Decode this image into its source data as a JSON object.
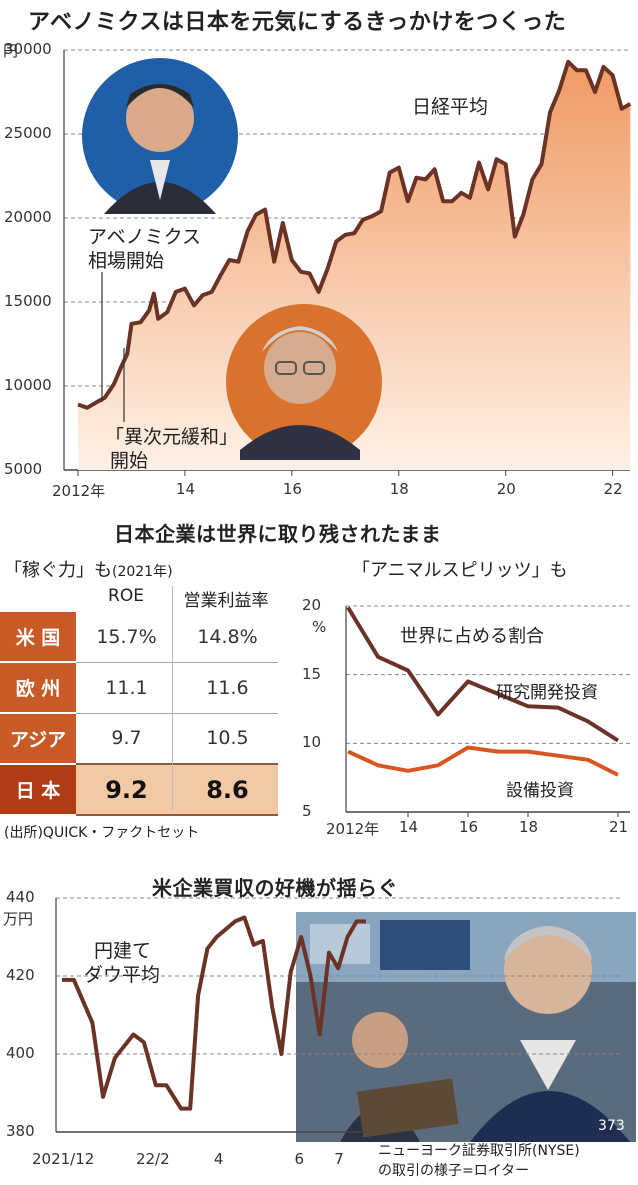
{
  "colors": {
    "line_dark": "#6b3326",
    "line_orange": "#d8561f",
    "area_top": "#ef9a63",
    "area_bottom": "#fff1e6",
    "grid": "#888888",
    "table_header": "#c75a26",
    "table_highlight": "#f3c9a5"
  },
  "icons": {
    "photo1": "photo-abe-icon",
    "photo2": "photo-kuroda-icon",
    "photo3": "photo-nyse-trader-icon"
  },
  "chart1": {
    "title": "アベノミクスは日本を元気にするきっかけをつくった",
    "unit": "円",
    "series_label": "日経平均",
    "annotation1_line1": "アベノミクス",
    "annotation1_line2": "相場開始",
    "annotation2_line1": "「異次元緩和」",
    "annotation2_line2": "開始",
    "yticks": [
      "30000",
      "25000",
      "20000",
      "15000",
      "10000",
      "5000"
    ],
    "xticks": [
      "2012年",
      "14",
      "16",
      "18",
      "20",
      "22"
    ]
  },
  "section2": {
    "title": "日本企業は世界に取り残されたまま"
  },
  "table": {
    "title": "「稼ぐ力」も",
    "title_suffix": "(2021年)",
    "col1": "ROE",
    "col2": "営業利益率",
    "rows": [
      {
        "name": "米 国",
        "roe": "15.7%",
        "margin": "14.8%"
      },
      {
        "name": "欧 州",
        "roe": "11.1",
        "margin": "11.6"
      },
      {
        "name": "アジア",
        "roe": "9.7",
        "margin": "10.5"
      },
      {
        "name": "日 本",
        "roe": "9.2",
        "margin": "8.6"
      }
    ],
    "source": "(出所)QUICK・ファクトセット"
  },
  "chart2": {
    "title": "「アニマルスピリッツ」も",
    "subtitle": "世界に占める割合",
    "unit": "%",
    "series1_label": "研究開発投資",
    "series2_label": "設備投資",
    "yticks": [
      "20",
      "15",
      "10",
      "5"
    ],
    "xticks": [
      "2012年",
      "14",
      "16",
      "18",
      "21"
    ]
  },
  "chart3": {
    "title": "米企業買収の好機が揺らぐ",
    "unit": "万円",
    "series_label_line1": "円建て",
    "series_label_line2": "ダウ平均",
    "yticks": [
      "440",
      "420",
      "400",
      "380"
    ],
    "xticks": [
      "2021/12",
      "22/2",
      "4",
      "6",
      "7"
    ],
    "caption_line1": "ニューヨーク証券取引所(NYSE)",
    "caption_line2": "の取引の様子=ロイター",
    "photo_text": "373"
  },
  "chart_data": [
    {
      "type": "area",
      "title": "アベノミクスは日本を元気にするきっかけをつくった",
      "ylabel": "円",
      "ylim": [
        5000,
        30000
      ],
      "xlim": [
        2012.0,
        2022.4
      ],
      "grid": true,
      "series": [
        {
          "name": "日経平均",
          "x": [
            2012.0,
            2012.17,
            2012.33,
            2012.5,
            2012.67,
            2012.83,
            2012.92,
            2013.0,
            2013.17,
            2013.33,
            2013.42,
            2013.5,
            2013.67,
            2013.83,
            2014.0,
            2014.17,
            2014.33,
            2014.5,
            2014.67,
            2014.83,
            2015.0,
            2015.17,
            2015.33,
            2015.5,
            2015.67,
            2015.83,
            2016.0,
            2016.17,
            2016.33,
            2016.5,
            2016.67,
            2016.83,
            2017.0,
            2017.17,
            2017.33,
            2017.5,
            2017.67,
            2017.83,
            2018.0,
            2018.17,
            2018.33,
            2018.5,
            2018.67,
            2018.83,
            2019.0,
            2019.17,
            2019.33,
            2019.5,
            2019.67,
            2019.83,
            2020.0,
            2020.17,
            2020.33,
            2020.5,
            2020.67,
            2020.83,
            2021.0,
            2021.17,
            2021.33,
            2021.5,
            2021.67,
            2021.83,
            2022.0,
            2022.17,
            2022.33
          ],
          "y": [
            8900,
            8700,
            9000,
            9300,
            10100,
            11300,
            11900,
            13700,
            13800,
            14500,
            15500,
            14000,
            14400,
            15600,
            15800,
            14800,
            15400,
            15600,
            16600,
            17500,
            17400,
            19200,
            20200,
            20500,
            17400,
            19700,
            17500,
            16800,
            16700,
            15600,
            17000,
            18600,
            19000,
            19100,
            19900,
            20100,
            20400,
            22700,
            23000,
            21000,
            22400,
            22300,
            22900,
            21000,
            21000,
            21500,
            21200,
            23300,
            21700,
            23500,
            23200,
            18900,
            20200,
            22300,
            23200,
            26300,
            27600,
            29300,
            28800,
            28800,
            27500,
            29000,
            28500,
            26500,
            26800
          ]
        }
      ]
    },
    {
      "type": "table",
      "title": "「稼ぐ力」も",
      "columns": [
        "",
        "ROE",
        "営業利益率"
      ],
      "rows": [
        [
          "米国",
          "15.7%",
          "14.8%"
        ],
        [
          "欧州",
          "11.1",
          "11.6"
        ],
        [
          "アジア",
          "9.7",
          "10.5"
        ],
        [
          "日本",
          "9.2",
          "8.6"
        ]
      ]
    },
    {
      "type": "line",
      "title": "「アニマルスピリッツ」も",
      "ylabel": "%",
      "ylim": [
        5,
        20
      ],
      "x": [
        2012,
        2013,
        2014,
        2015,
        2016,
        2017,
        2018,
        2019,
        2020,
        2021
      ],
      "series": [
        {
          "name": "研究開発投資",
          "values": [
            19.9,
            16.3,
            15.3,
            12.1,
            14.5,
            13.6,
            12.7,
            12.6,
            11.6,
            10.2
          ]
        },
        {
          "name": "設備投資",
          "values": [
            9.4,
            8.4,
            8.0,
            8.4,
            9.7,
            9.4,
            9.4,
            9.1,
            8.8,
            7.7
          ]
        }
      ]
    },
    {
      "type": "line",
      "title": "米企業買収の好機が揺らぐ",
      "ylabel": "万円",
      "ylim": [
        380,
        440
      ],
      "x": [
        "2021/12/01",
        "2021/12/10",
        "2021/12/24",
        "2022/01/01",
        "2022/01/10",
        "2022/01/24",
        "2022/02/01",
        "2022/02/10",
        "2022/02/18",
        "2022/03/01",
        "2022/03/08",
        "2022/03/14",
        "2022/03/21",
        "2022/03/28",
        "2022/04/04",
        "2022/04/11",
        "2022/04/18",
        "2022/04/25",
        "2022/05/02",
        "2022/05/09",
        "2022/05/16",
        "2022/05/23",
        "2022/05/31",
        "2022/06/07",
        "2022/06/14",
        "2022/06/21",
        "2022/06/28",
        "2022/07/05",
        "2022/07/12",
        "2022/07/19"
      ],
      "series": [
        {
          "name": "円建てダウ平均",
          "values": [
            419,
            419,
            408,
            389,
            399,
            405,
            403,
            392,
            392,
            386,
            386,
            415,
            427,
            430,
            432,
            434,
            435,
            428,
            429,
            412,
            400,
            421,
            430,
            420,
            405,
            426,
            422,
            430,
            434,
            434
          ]
        }
      ]
    }
  ]
}
